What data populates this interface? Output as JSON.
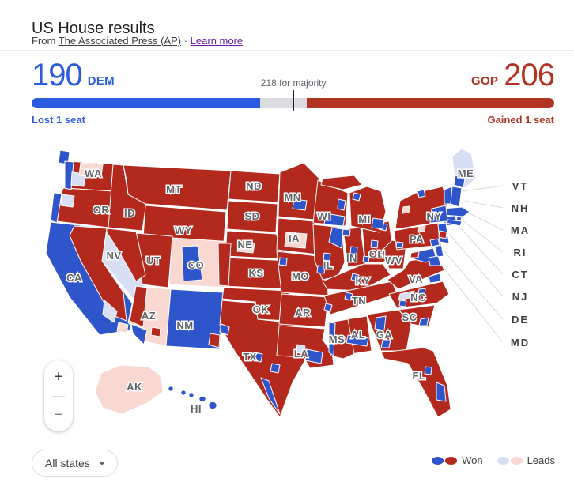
{
  "header": {
    "title": "US House results",
    "source_prefix": "From",
    "source_link_label": "The Associated Press (AP)",
    "separator": "·",
    "learn_more_label": "Learn more"
  },
  "tally": {
    "dem_seats": "190",
    "dem_party": "DEM",
    "gop_party": "GOP",
    "gop_seats": "206",
    "majority_note": "218 for majority",
    "dem_status": "Lost 1 seat",
    "gop_status": "Gained 1 seat",
    "bar": {
      "dem_pct": 43.7,
      "undecided_pct": 8.9,
      "gop_pct": 47.4,
      "majority_pct": 50.1
    }
  },
  "map": {
    "states": [
      {
        "abbr": "WA"
      },
      {
        "abbr": "OR"
      },
      {
        "abbr": "CA"
      },
      {
        "abbr": "NV"
      },
      {
        "abbr": "ID"
      },
      {
        "abbr": "MT"
      },
      {
        "abbr": "WY"
      },
      {
        "abbr": "UT"
      },
      {
        "abbr": "CO"
      },
      {
        "abbr": "AZ"
      },
      {
        "abbr": "NM"
      },
      {
        "abbr": "ND"
      },
      {
        "abbr": "SD"
      },
      {
        "abbr": "NE"
      },
      {
        "abbr": "KS"
      },
      {
        "abbr": "OK"
      },
      {
        "abbr": "TX"
      },
      {
        "abbr": "MN"
      },
      {
        "abbr": "IA"
      },
      {
        "abbr": "MO"
      },
      {
        "abbr": "AR"
      },
      {
        "abbr": "LA"
      },
      {
        "abbr": "WI"
      },
      {
        "abbr": "IL"
      },
      {
        "abbr": "IN"
      },
      {
        "abbr": "OH"
      },
      {
        "abbr": "MI"
      },
      {
        "abbr": "KY"
      },
      {
        "abbr": "TN"
      },
      {
        "abbr": "WV"
      },
      {
        "abbr": "VA"
      },
      {
        "abbr": "PA"
      },
      {
        "abbr": "NY"
      },
      {
        "abbr": "ME"
      },
      {
        "abbr": "MS"
      },
      {
        "abbr": "AL"
      },
      {
        "abbr": "GA"
      },
      {
        "abbr": "SC"
      },
      {
        "abbr": "NC"
      },
      {
        "abbr": "FL"
      },
      {
        "abbr": "AK"
      },
      {
        "abbr": "HI"
      }
    ],
    "callouts": [
      "VT",
      "NH",
      "MA",
      "RI",
      "CT",
      "NJ",
      "DE",
      "MD"
    ]
  },
  "controls": {
    "zoom_in": "+",
    "zoom_out": "−",
    "filter_label": "All states"
  },
  "legend": {
    "won_label": "Won",
    "leads_label": "Leads"
  },
  "colors": {
    "dem_accent": "#2b5ce0",
    "gop_accent": "#b13321",
    "map_dem": "#2f55cb",
    "map_gop": "#b3291d",
    "dem_leads": "#d8def3",
    "gop_leads": "#f8d8d0",
    "undecided": "#dadce0",
    "link_purple": "#681da8"
  }
}
